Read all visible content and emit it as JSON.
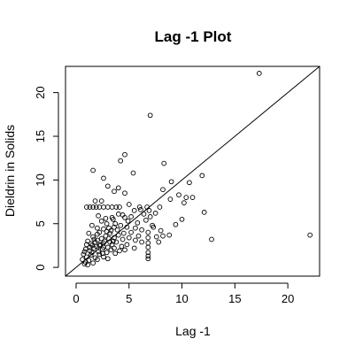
{
  "chart_data": {
    "type": "scatter",
    "title": "Lag -1 Plot",
    "xlabel": "Lag -1",
    "ylabel": "Dieldrin in Solids",
    "xlim": [
      -1,
      23
    ],
    "ylim": [
      -1,
      23
    ],
    "x_ticks": [
      0,
      5,
      10,
      15,
      20
    ],
    "y_ticks": [
      0,
      5,
      10,
      15,
      20
    ],
    "x_tick_labels": [
      "0",
      "5",
      "10",
      "15",
      "20"
    ],
    "y_tick_labels": [
      "0",
      "5",
      "10",
      "15",
      "20"
    ],
    "reference_line": {
      "slope": 1,
      "intercept": 0
    },
    "marker": "open-circle",
    "marker_color": "#000000",
    "points": [
      [
        17.3,
        22.2
      ],
      [
        22.1,
        3.7
      ],
      [
        7.0,
        17.4
      ],
      [
        4.6,
        12.9
      ],
      [
        4.2,
        12.2
      ],
      [
        8.3,
        11.9
      ],
      [
        5.4,
        10.8
      ],
      [
        1.6,
        11.1
      ],
      [
        11.9,
        10.5
      ],
      [
        10.7,
        9.7
      ],
      [
        9.0,
        9.8
      ],
      [
        8.2,
        8.9
      ],
      [
        2.6,
        10.2
      ],
      [
        3.0,
        9.3
      ],
      [
        4.0,
        9.1
      ],
      [
        3.6,
        8.7
      ],
      [
        9.7,
        8.3
      ],
      [
        10.4,
        8.0
      ],
      [
        11.0,
        8.0
      ],
      [
        10.2,
        7.4
      ],
      [
        8.9,
        7.8
      ],
      [
        7.9,
        6.9
      ],
      [
        12.1,
        6.3
      ],
      [
        10.0,
        5.5
      ],
      [
        12.8,
        3.2
      ],
      [
        1.0,
        6.9
      ],
      [
        1.3,
        6.9
      ],
      [
        1.6,
        6.9
      ],
      [
        1.9,
        6.9
      ],
      [
        2.2,
        6.9
      ],
      [
        2.6,
        6.9
      ],
      [
        3.0,
        6.9
      ],
      [
        3.4,
        6.9
      ],
      [
        3.8,
        6.9
      ],
      [
        4.1,
        6.9
      ],
      [
        6.7,
        6.9
      ],
      [
        7.5,
        6.2
      ],
      [
        6.9,
        6.5
      ],
      [
        1.8,
        7.6
      ],
      [
        2.4,
        7.6
      ],
      [
        4.6,
        8.5
      ],
      [
        5.0,
        7.2
      ],
      [
        5.5,
        6.5
      ],
      [
        6.0,
        6.9
      ],
      [
        4.4,
        6.0
      ],
      [
        5.2,
        5.8
      ],
      [
        2.1,
        5.9
      ],
      [
        2.8,
        5.6
      ],
      [
        3.5,
        5.5
      ],
      [
        4.9,
        5.3
      ],
      [
        6.6,
        5.4
      ],
      [
        7.2,
        4.8
      ],
      [
        7.6,
        3.5
      ],
      [
        8.2,
        3.6
      ],
      [
        8.8,
        3.7
      ],
      [
        7.8,
        2.9
      ],
      [
        9.4,
        4.9
      ],
      [
        1.5,
        4.8
      ],
      [
        2.0,
        4.5
      ],
      [
        2.6,
        4.4
      ],
      [
        3.1,
        4.5
      ],
      [
        3.6,
        4.6
      ],
      [
        4.2,
        4.8
      ],
      [
        4.8,
        4.6
      ],
      [
        5.6,
        4.5
      ],
      [
        6.2,
        4.3
      ],
      [
        6.8,
        4.0
      ],
      [
        6.8,
        3.4
      ],
      [
        6.8,
        2.8
      ],
      [
        6.8,
        2.3
      ],
      [
        6.8,
        1.7
      ],
      [
        6.8,
        1.3
      ],
      [
        6.8,
        1.0
      ],
      [
        1.2,
        3.9
      ],
      [
        1.6,
        3.5
      ],
      [
        2.0,
        3.8
      ],
      [
        2.4,
        3.3
      ],
      [
        2.8,
        3.6
      ],
      [
        3.2,
        3.9
      ],
      [
        3.6,
        3.4
      ],
      [
        4.0,
        3.7
      ],
      [
        4.4,
        3.2
      ],
      [
        5.0,
        3.4
      ],
      [
        5.6,
        3.1
      ],
      [
        6.2,
        2.9
      ],
      [
        1.1,
        3.0
      ],
      [
        1.4,
        2.7
      ],
      [
        1.8,
        2.9
      ],
      [
        2.2,
        2.5
      ],
      [
        2.6,
        2.8
      ],
      [
        3.0,
        2.3
      ],
      [
        3.4,
        2.6
      ],
      [
        3.8,
        2.9
      ],
      [
        4.3,
        2.4
      ],
      [
        4.8,
        2.6
      ],
      [
        5.5,
        2.2
      ],
      [
        0.9,
        2.1
      ],
      [
        1.3,
        1.9
      ],
      [
        1.7,
        2.2
      ],
      [
        2.1,
        1.8
      ],
      [
        2.5,
        2.1
      ],
      [
        2.9,
        1.7
      ],
      [
        3.3,
        2.0
      ],
      [
        3.7,
        1.6
      ],
      [
        4.1,
        1.9
      ],
      [
        0.7,
        1.5
      ],
      [
        1.0,
        1.2
      ],
      [
        1.4,
        1.4
      ],
      [
        1.8,
        1.1
      ],
      [
        2.2,
        1.5
      ],
      [
        2.6,
        1.2
      ],
      [
        3.0,
        1.0
      ],
      [
        0.6,
        0.9
      ],
      [
        0.9,
        0.6
      ],
      [
        1.2,
        0.8
      ],
      [
        1.6,
        0.5
      ],
      [
        2.0,
        0.9
      ],
      [
        0.8,
        0.4
      ],
      [
        1.1,
        0.3
      ],
      [
        1.5,
        1.7
      ],
      [
        2.3,
        2.6
      ],
      [
        2.7,
        3.0
      ],
      [
        3.1,
        3.3
      ],
      [
        3.5,
        3.0
      ],
      [
        1.9,
        2.4
      ],
      [
        2.5,
        1.6
      ],
      [
        3.2,
        2.9
      ],
      [
        4.5,
        3.9
      ],
      [
        5.2,
        4.0
      ],
      [
        5.9,
        3.6
      ],
      [
        2.9,
        4.1
      ],
      [
        3.3,
        4.2
      ],
      [
        1.7,
        3.2
      ],
      [
        4.0,
        6.1
      ],
      [
        4.6,
        5.7
      ],
      [
        5.8,
        5.1
      ],
      [
        6.4,
        6.1
      ],
      [
        7.0,
        5.8
      ],
      [
        3.9,
        4.3
      ],
      [
        1.3,
        2.3
      ],
      [
        2.0,
        3.1
      ],
      [
        2.6,
        2.3
      ],
      [
        3.6,
        2.2
      ],
      [
        4.6,
        2.0
      ],
      [
        0.8,
        1.8
      ],
      [
        1.5,
        2.5
      ],
      [
        2.2,
        4.0
      ],
      [
        2.9,
        5.0
      ],
      [
        3.4,
        5.7
      ],
      [
        1.0,
        2.6
      ],
      [
        7.3,
        4.6
      ],
      [
        8.0,
        4.2
      ],
      [
        6.1,
        6.6
      ],
      [
        3.7,
        5.0
      ],
      [
        2.4,
        5.3
      ]
    ]
  }
}
